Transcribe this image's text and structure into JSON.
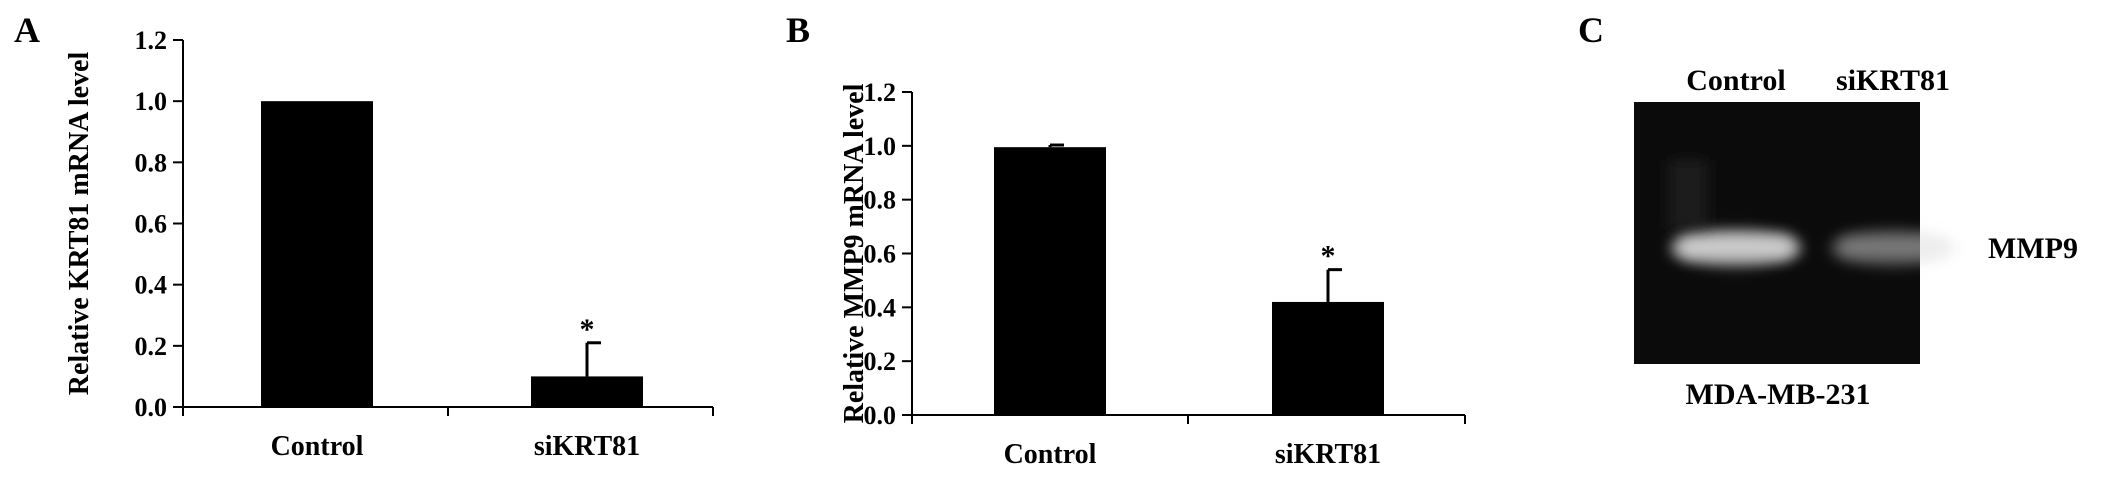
{
  "chart_data": [
    {
      "panel_label": "A",
      "type": "bar",
      "categories": [
        "Control",
        "siKRT81"
      ],
      "values": [
        1.0,
        0.1
      ],
      "error": [
        0.0,
        0.11
      ],
      "significance": [
        "",
        "*"
      ],
      "ylabel": "Relative KRT81 mRNA level",
      "ylim": [
        0,
        1.2
      ],
      "yticks": [
        "0.0",
        "0.2",
        "0.4",
        "0.6",
        "0.8",
        "1.0",
        "1.2"
      ],
      "grid": false,
      "bar_color": "#000000"
    },
    {
      "panel_label": "B",
      "type": "bar",
      "categories": [
        "Control",
        "siKRT81"
      ],
      "values": [
        0.995,
        0.42
      ],
      "error": [
        0.008,
        0.12
      ],
      "significance": [
        "",
        "*"
      ],
      "ylabel": "Relative  MMP9 mRNA level",
      "ylim": [
        0,
        1.2
      ],
      "yticks": [
        "0.0",
        "0.2",
        "0.4",
        "0.6",
        "0.8",
        "1.0",
        "1.2"
      ],
      "grid": false,
      "bar_color": "#000000"
    }
  ],
  "gel": {
    "panel_label": "C",
    "lane_labels": [
      "Control",
      "siKRT81"
    ],
    "band_label": "MMP9",
    "cell_line": "MDA-MB-231",
    "band_intensity": [
      1.0,
      0.4
    ]
  }
}
